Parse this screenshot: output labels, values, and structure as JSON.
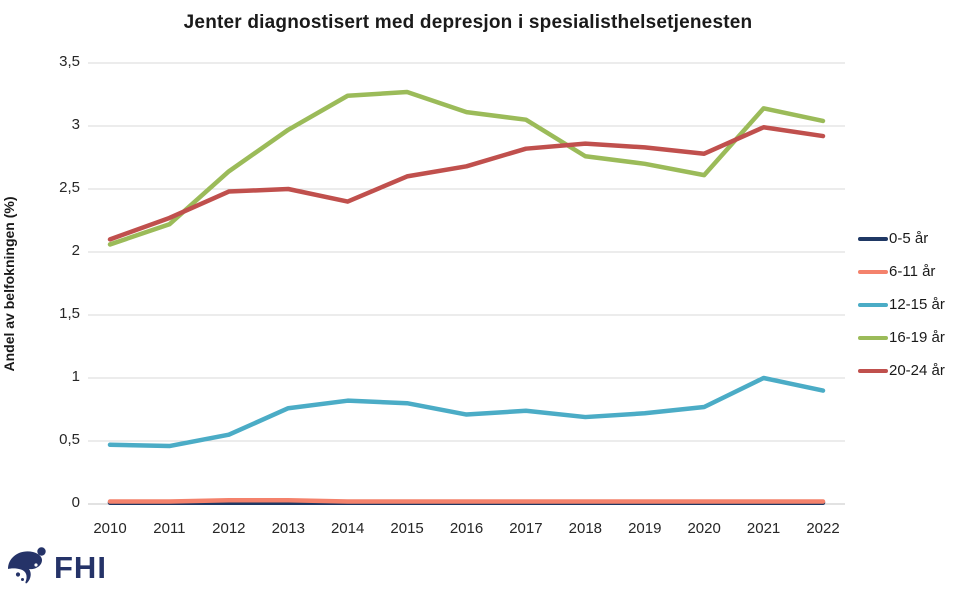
{
  "logo": {
    "text": "FHI",
    "color": "#253368"
  },
  "chart_data": {
    "type": "line",
    "title": "Jenter diagnostisert med depresjon i spesialisthelsetjenesten",
    "ylabel": "Andel av belfokningen (%)",
    "xlabel": "",
    "ylim": [
      0,
      3.5
    ],
    "ytick_step": 0.5,
    "ytick_labels": [
      "0",
      "0,5",
      "1",
      "1,5",
      "2",
      "2,5",
      "3",
      "3,5"
    ],
    "grid": "horizontal",
    "legend_position": "right",
    "categories": [
      "2010",
      "2011",
      "2012",
      "2013",
      "2014",
      "2015",
      "2016",
      "2017",
      "2018",
      "2019",
      "2020",
      "2021",
      "2022"
    ],
    "series": [
      {
        "name": "0-5 år",
        "color": "#1F3864",
        "values": [
          0.01,
          0.01,
          0.01,
          0.01,
          0.01,
          0.01,
          0.01,
          0.01,
          0.01,
          0.01,
          0.01,
          0.01,
          0.01
        ]
      },
      {
        "name": "6-11 år",
        "color": "#F4826C",
        "values": [
          0.02,
          0.02,
          0.03,
          0.03,
          0.02,
          0.02,
          0.02,
          0.02,
          0.02,
          0.02,
          0.02,
          0.02,
          0.02
        ]
      },
      {
        "name": "12-15 år",
        "color": "#4BACC6",
        "values": [
          0.47,
          0.46,
          0.55,
          0.76,
          0.82,
          0.8,
          0.71,
          0.74,
          0.69,
          0.72,
          0.77,
          1.0,
          0.9
        ]
      },
      {
        "name": "16-19 år",
        "color": "#9BBB59",
        "values": [
          2.06,
          2.22,
          2.64,
          2.97,
          3.24,
          3.27,
          3.11,
          3.05,
          2.76,
          2.7,
          2.61,
          3.14,
          3.04
        ]
      },
      {
        "name": "20-24 år",
        "color": "#C0504D",
        "values": [
          2.1,
          2.27,
          2.48,
          2.5,
          2.4,
          2.6,
          2.68,
          2.82,
          2.86,
          2.83,
          2.78,
          2.99,
          2.92
        ]
      }
    ],
    "gridline_color": "#D9D9D9",
    "baseline_color": "#C6C6C6"
  }
}
